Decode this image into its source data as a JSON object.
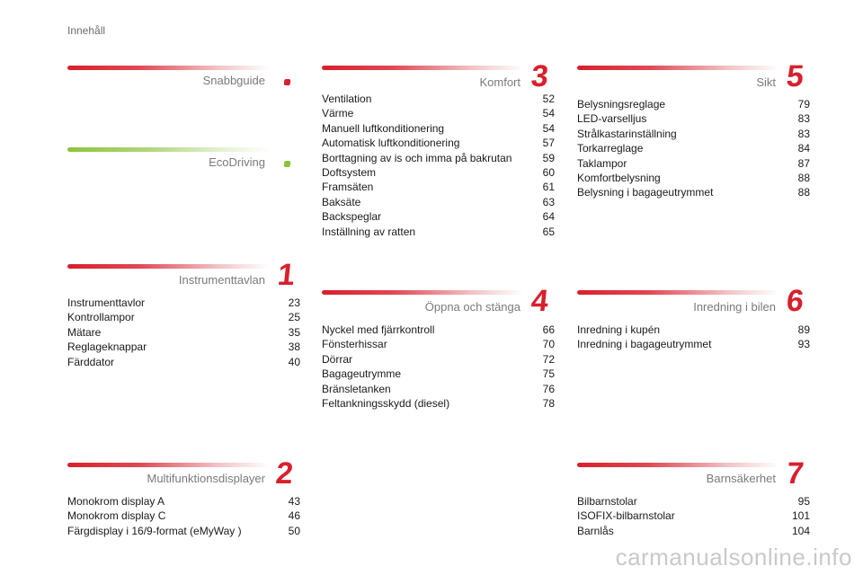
{
  "page_title": "Innehåll",
  "sections": {
    "snabbguide": {
      "title": "Snabbguide",
      "items": []
    },
    "ecodriving": {
      "title": "EcoDriving",
      "items": []
    },
    "instrumenttavlan": {
      "title": "Instrumenttavlan",
      "number": "1",
      "items": [
        {
          "label": "Instrumenttavlor",
          "page": "23"
        },
        {
          "label": "Kontrollampor",
          "page": "25"
        },
        {
          "label": "Mätare",
          "page": "35"
        },
        {
          "label": "Reglageknappar",
          "page": "38"
        },
        {
          "label": "Färddator",
          "page": "40"
        }
      ]
    },
    "multifunktionsdisplayer": {
      "title": "Multifunktionsdisplayer",
      "number": "2",
      "items": [
        {
          "label": "Monokrom display A",
          "page": "43"
        },
        {
          "label": "Monokrom display C",
          "page": "46"
        },
        {
          "label": "Färgdisplay i 16/9-format (eMyWay )",
          "page": "50"
        }
      ]
    },
    "komfort": {
      "title": "Komfort",
      "number": "3",
      "items": [
        {
          "label": "Ventilation",
          "page": "52"
        },
        {
          "label": "Värme",
          "page": "54"
        },
        {
          "label": "Manuell luftkonditionering",
          "page": "54"
        },
        {
          "label": "Automatisk luftkonditionering",
          "page": "57"
        },
        {
          "label": "Borttagning av is och imma på bakrutan",
          "page": "59"
        },
        {
          "label": "Doftsystem",
          "page": "60"
        },
        {
          "label": "Framsäten",
          "page": "61"
        },
        {
          "label": "Baksäte",
          "page": "63"
        },
        {
          "label": "Backspeglar",
          "page": "64"
        },
        {
          "label": "Inställning av ratten",
          "page": "65"
        }
      ]
    },
    "oppna_och_stanga": {
      "title": "Öppna och stänga",
      "number": "4",
      "items": [
        {
          "label": "Nyckel med fjärrkontroll",
          "page": "66"
        },
        {
          "label": "Fönsterhissar",
          "page": "70"
        },
        {
          "label": "Dörrar",
          "page": "72"
        },
        {
          "label": "Bagageutrymme",
          "page": "75"
        },
        {
          "label": "Bränsletanken",
          "page": "76"
        },
        {
          "label": "Feltankningsskydd (diesel)",
          "page": "78"
        }
      ]
    },
    "sikt": {
      "title": "Sikt",
      "number": "5",
      "items": [
        {
          "label": "Belysningsreglage",
          "page": "79"
        },
        {
          "label": "LED-varselljus",
          "page": "83"
        },
        {
          "label": "Strålkastarinställning",
          "page": "83"
        },
        {
          "label": "Torkarreglage",
          "page": "84"
        },
        {
          "label": "Taklampor",
          "page": "87"
        },
        {
          "label": "Komfortbelysning",
          "page": "88"
        },
        {
          "label": "Belysning i bagageutrymmet",
          "page": "88"
        }
      ]
    },
    "inredning_i_bilen": {
      "title": "Inredning i bilen",
      "number": "6",
      "items": [
        {
          "label": "Inredning i kupén",
          "page": "89"
        },
        {
          "label": "Inredning i bagageutrymmet",
          "page": "93"
        }
      ]
    },
    "barnsakerhet": {
      "title": "Barnsäkerhet",
      "number": "7",
      "items": [
        {
          "label": "Bilbarnstolar",
          "page": "95"
        },
        {
          "label": "ISOFIX-bilbarnstolar",
          "page": "101"
        },
        {
          "label": "Barnlås",
          "page": "104"
        }
      ]
    }
  },
  "colors": {
    "accent_red": "#d8202c",
    "accent_green": "#8cc43a",
    "heading_gray": "#7a7a7a"
  },
  "watermark": "carmanualsonline.info"
}
